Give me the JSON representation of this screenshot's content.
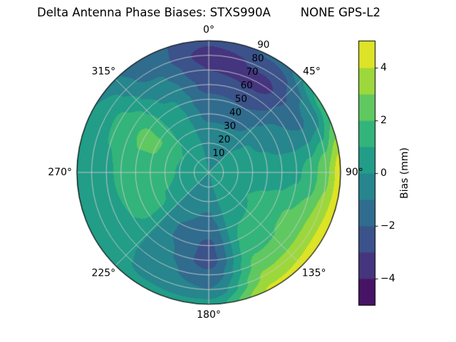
{
  "chart_data": {
    "type": "heatmap",
    "projection": "polar-contourf",
    "title_left": "Delta Antenna Phase Biases: STXS990A",
    "title_right": "NONE GPS-L2",
    "azimuth_ticks_deg": [
      0,
      45,
      90,
      135,
      180,
      225,
      270,
      315
    ],
    "azimuth_tick_labels": [
      "0°",
      "45°",
      "90°",
      "135°",
      "180°",
      "225°",
      "270°",
      "315°"
    ],
    "radial_ticks": [
      10,
      20,
      30,
      40,
      50,
      60,
      70,
      80,
      90
    ],
    "radial_tick_labels": [
      "10",
      "20",
      "30",
      "40",
      "50",
      "60",
      "70",
      "80",
      "90"
    ],
    "radial_max": 90,
    "radial_label_azimuth_deg": 22.5,
    "grid_on": true,
    "colorbar": {
      "label": "Bias (mm)",
      "tick_values": [
        4,
        2,
        0,
        -2,
        -4
      ],
      "tick_labels": [
        "4",
        "2",
        "0",
        "−2",
        "−4"
      ],
      "vmin": -5,
      "vmax": 5,
      "level_step": 1,
      "colormap": "viridis",
      "viridis_anchors": [
        "#440154",
        "#482475",
        "#414487",
        "#355f8d",
        "#2a788e",
        "#21918c",
        "#22a884",
        "#44bf70",
        "#7ad151",
        "#bddf26",
        "#fde725"
      ]
    },
    "grid": {
      "azimuth_deg": [
        0,
        30,
        60,
        90,
        120,
        150,
        180,
        210,
        240,
        270,
        300,
        330
      ],
      "radius": [
        0,
        10,
        20,
        30,
        40,
        50,
        60,
        70,
        80,
        90
      ],
      "bias_mm": [
        [
          0.0,
          -0.1,
          -0.3,
          -0.8,
          -1.3,
          -1.8,
          -2.4,
          -3.0,
          -3.4,
          -2.8
        ],
        [
          0.0,
          -0.1,
          -0.3,
          -0.8,
          -1.4,
          -2.0,
          -2.8,
          -3.4,
          -2.8,
          -1.8
        ],
        [
          0.0,
          0.1,
          0.2,
          0.1,
          -0.2,
          -0.6,
          -1.0,
          -1.2,
          -0.6,
          1.4
        ],
        [
          0.0,
          0.3,
          0.5,
          0.6,
          0.6,
          0.5,
          0.8,
          1.5,
          2.8,
          4.6
        ],
        [
          0.0,
          0.4,
          0.8,
          1.0,
          1.2,
          1.6,
          2.1,
          2.6,
          3.6,
          4.8
        ],
        [
          0.0,
          0.2,
          0.4,
          0.6,
          1.0,
          1.4,
          1.8,
          2.4,
          3.2,
          4.2
        ],
        [
          0.0,
          -0.2,
          -0.6,
          -1.1,
          -1.7,
          -2.2,
          -2.4,
          -1.8,
          -1.0,
          0.4
        ],
        [
          0.0,
          -0.2,
          -0.5,
          -0.8,
          -1.0,
          -1.0,
          -0.8,
          -0.5,
          -0.2,
          0.2
        ],
        [
          0.0,
          0.2,
          0.5,
          0.9,
          1.2,
          1.3,
          1.0,
          0.7,
          0.5,
          0.4
        ],
        [
          0.0,
          0.4,
          0.9,
          1.4,
          1.8,
          1.6,
          1.2,
          0.8,
          0.4,
          0.2
        ],
        [
          0.0,
          0.4,
          1.0,
          1.6,
          2.1,
          2.2,
          1.8,
          1.2,
          0.6,
          0.0
        ],
        [
          0.0,
          0.2,
          0.4,
          0.5,
          0.4,
          0.2,
          -0.2,
          -0.8,
          -1.4,
          -1.6
        ]
      ]
    }
  }
}
